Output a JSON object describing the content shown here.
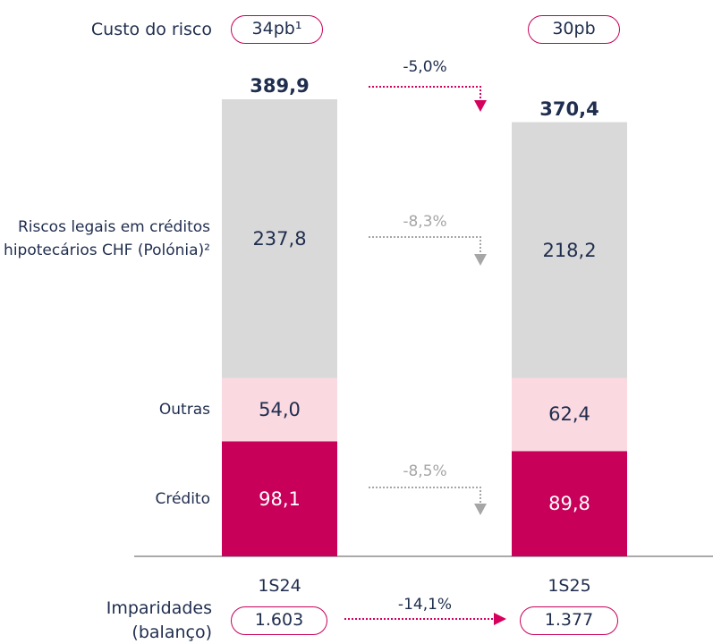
{
  "chart_data": {
    "type": "stacked_bar",
    "categories": [
      "1S24",
      "1S25"
    ],
    "series": [
      {
        "name": "Crédito",
        "color": "#c8005a",
        "label_color": "#ffffff",
        "values": [
          98.1,
          89.8
        ],
        "value_labels": [
          "98,1",
          "89,8"
        ]
      },
      {
        "name": "Outras",
        "color": "#fad9e1",
        "label_color": "#1f2d4e",
        "values": [
          54.0,
          62.4
        ],
        "value_labels": [
          "54,0",
          "62,4"
        ]
      },
      {
        "name": "Riscos legais em créditos hipotecários CHF (Polónia)²",
        "color": "#d9d9d9",
        "label_color": "#1f2d4e",
        "values": [
          237.8,
          218.2
        ],
        "value_labels": [
          "237,8",
          "218,2"
        ]
      }
    ],
    "totals": [
      389.9,
      370.4
    ],
    "total_labels": [
      "389,9",
      "370,4"
    ],
    "changes": [
      {
        "text": "-5,0%",
        "color": "#d6005d"
      },
      {
        "text": "-8,3%",
        "color": "#a6a6a6"
      },
      {
        "text": "-8,5%",
        "color": "#a6a6a6"
      }
    ],
    "cost_of_risk": {
      "label": "Custo do risco",
      "values": [
        "34pb¹",
        "30pb"
      ]
    },
    "impairments": {
      "label": "Imparidades (balanço)",
      "values": [
        1603,
        1377
      ],
      "value_labels": [
        "1.603",
        "1.377"
      ],
      "change": "-14,1%",
      "color": "#d6005d"
    }
  }
}
